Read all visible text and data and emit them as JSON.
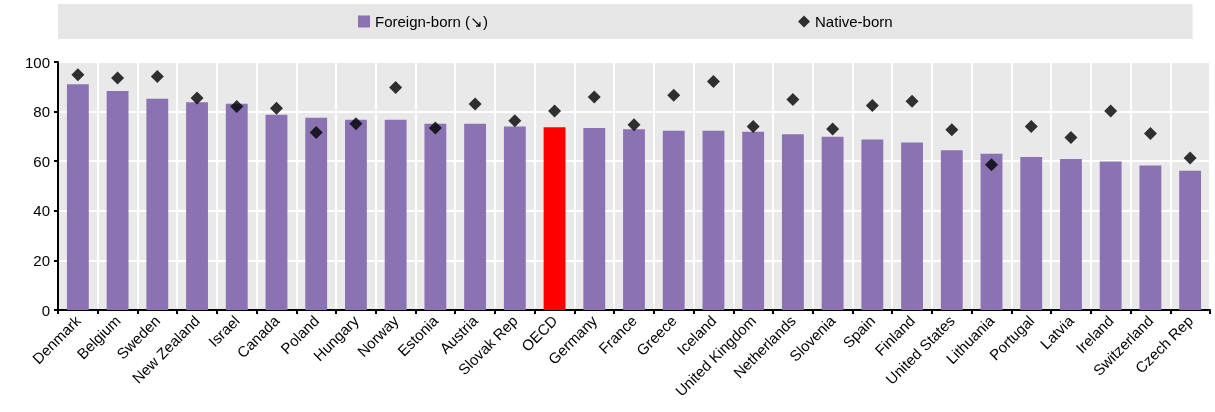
{
  "chart_data": {
    "type": "bar",
    "categories": [
      "Denmark",
      "Belgium",
      "Sweden",
      "New Zealand",
      "Israel",
      "Canada",
      "Poland",
      "Hungary",
      "Norway",
      "Estonia",
      "Austria",
      "Slovak Rep",
      "OECD",
      "Germany",
      "France",
      "Greece",
      "Iceland",
      "United Kingdom",
      "Netherlands",
      "Slovenia",
      "Spain",
      "Finland",
      "United States",
      "Lithuania",
      "Portugal",
      "Latvia",
      "Ireland",
      "Switzerland",
      "Czech Rep"
    ],
    "series": [
      {
        "name": "Foreign-born (↘)",
        "color": "#8b72b2",
        "colors": [
          "#8b72b2",
          "#8b72b2",
          "#8b72b2",
          "#8b72b2",
          "#8b72b2",
          "#8b72b2",
          "#8b72b2",
          "#8b72b2",
          "#8b72b2",
          "#8b72b2",
          "#8b72b2",
          "#8b72b2",
          "#ff0000",
          "#8b72b2",
          "#8b72b2",
          "#8b72b2",
          "#8b72b2",
          "#8b72b2",
          "#8b72b2",
          "#8b72b2",
          "#8b72b2",
          "#8b72b2",
          "#8b72b2",
          "#8b72b2",
          "#8b72b2",
          "#8b72b2",
          "#8b72b2",
          "#8b72b2",
          "#8b72b2"
        ],
        "values": [
          91.0,
          88.3,
          85.2,
          83.8,
          83.2,
          78.7,
          77.5,
          76.7,
          76.7,
          75.1,
          75.1,
          74.0,
          73.7,
          73.4,
          72.9,
          72.3,
          72.3,
          71.9,
          70.9,
          69.9,
          68.8,
          67.5,
          64.4,
          63.0,
          61.7,
          60.9,
          59.9,
          58.3,
          56.1
        ]
      },
      {
        "name": "Native-born",
        "type": "scatter",
        "marker": "diamond",
        "color": "#000000",
        "values": [
          94.9,
          93.5,
          94.2,
          85.5,
          82.1,
          81.4,
          71.6,
          75.1,
          89.7,
          73.4,
          83.1,
          76.3,
          80.2,
          85.9,
          74.7,
          86.6,
          92.1,
          74.0,
          84.9,
          73.0,
          82.5,
          84.2,
          72.7,
          58.6,
          74.0,
          69.6,
          80.2,
          71.2,
          61.3
        ]
      }
    ],
    "ylim": [
      0,
      100
    ],
    "yticks": [
      0,
      20,
      40,
      60,
      80,
      100
    ],
    "grid": true,
    "legend": "top"
  }
}
